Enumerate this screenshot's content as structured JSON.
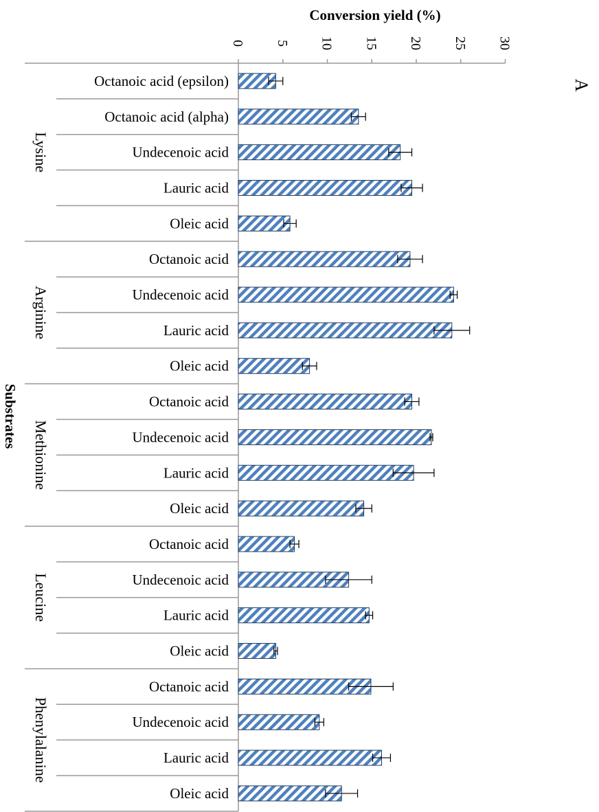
{
  "panel_label": "A",
  "chart_data": {
    "type": "bar",
    "orientation": "horizontal",
    "xlabel": "Conversion yield (%)",
    "ylabel": "Substrates",
    "xlim": [
      0,
      30
    ],
    "xticks": [
      "0",
      "5",
      "10",
      "15",
      "20",
      "25",
      "30"
    ],
    "grid": false,
    "groups": [
      {
        "name": "Lysine",
        "bars": [
          {
            "label": "Octanoic acid (epsilon)",
            "value": 4.2,
            "error": 0.8
          },
          {
            "label": "Octanoic acid (alpha)",
            "value": 13.5,
            "error": 0.8
          },
          {
            "label": "Undecenoic acid",
            "value": 18.2,
            "error": 1.3
          },
          {
            "label": "Lauric acid",
            "value": 19.5,
            "error": 1.2
          },
          {
            "label": "Oleic acid",
            "value": 5.8,
            "error": 0.7
          }
        ]
      },
      {
        "name": "Arginine",
        "bars": [
          {
            "label": "Octanoic acid",
            "value": 19.3,
            "error": 1.4
          },
          {
            "label": "Undecenoic acid",
            "value": 24.2,
            "error": 0.4
          },
          {
            "label": "Lauric acid",
            "value": 24.0,
            "error": 2.0
          },
          {
            "label": "Oleic acid",
            "value": 8.0,
            "error": 0.8
          }
        ]
      },
      {
        "name": "Methionine",
        "bars": [
          {
            "label": "Octanoic acid",
            "value": 19.5,
            "error": 0.8
          },
          {
            "label": "Undecenoic acid",
            "value": 21.7,
            "error": 0.15
          },
          {
            "label": "Lauric acid",
            "value": 19.7,
            "error": 2.3
          },
          {
            "label": "Oleic acid",
            "value": 14.1,
            "error": 0.9
          }
        ]
      },
      {
        "name": "Leucine",
        "bars": [
          {
            "label": "Octanoic acid",
            "value": 6.3,
            "error": 0.5
          },
          {
            "label": "Undecenoic acid",
            "value": 12.4,
            "error": 2.6
          },
          {
            "label": "Lauric acid",
            "value": 14.7,
            "error": 0.4
          },
          {
            "label": "Oleic acid",
            "value": 4.2,
            "error": 0.2
          }
        ]
      },
      {
        "name": "Phenylalanine",
        "bars": [
          {
            "label": "Octanoic acid",
            "value": 14.9,
            "error": 2.5
          },
          {
            "label": "Undecenoic acid",
            "value": 9.1,
            "error": 0.5
          },
          {
            "label": "Lauric acid",
            "value": 16.1,
            "error": 1.0
          },
          {
            "label": "Oleic acid",
            "value": 11.6,
            "error": 1.8
          }
        ]
      }
    ],
    "colors": {
      "bar_stripe": "#4f81bd",
      "bar_background": "#ffffff",
      "bar_outline": "#1f3a5f",
      "axis": "#999999"
    }
  }
}
